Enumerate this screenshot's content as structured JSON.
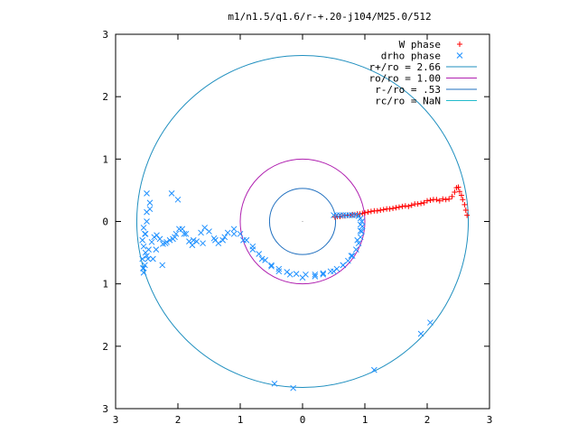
{
  "chart_data": {
    "type": "scatter",
    "title": "m1/n1.5/q1.6/r-+.20-j104/M25.0/512",
    "xlabel": "",
    "ylabel": "",
    "xlim": [
      -3,
      3
    ],
    "ylim": [
      -3,
      3
    ],
    "x_ticks": [
      {
        "value": -3,
        "label": "3"
      },
      {
        "value": -2,
        "label": "2"
      },
      {
        "value": -1,
        "label": "1"
      },
      {
        "value": 0,
        "label": "0"
      },
      {
        "value": 1,
        "label": "1"
      },
      {
        "value": 2,
        "label": "2"
      },
      {
        "value": 3,
        "label": "3"
      }
    ],
    "y_ticks": [
      {
        "value": 3,
        "label": "3"
      },
      {
        "value": 2,
        "label": "2"
      },
      {
        "value": 1,
        "label": "1"
      },
      {
        "value": 0,
        "label": "0"
      },
      {
        "value": -1,
        "label": "1"
      },
      {
        "value": -2,
        "label": "2"
      },
      {
        "value": -3,
        "label": "3"
      }
    ],
    "grid": false,
    "legend_position": "top-right",
    "center_dot": [
      0,
      0
    ],
    "series": [
      {
        "name": "W phase",
        "marker": "+",
        "color": "#ff0000",
        "x": [
          0.52,
          0.56,
          0.6,
          0.64,
          0.68,
          0.72,
          0.76,
          0.8,
          0.84,
          0.88,
          0.92,
          0.96,
          1.0,
          1.05,
          1.1,
          1.15,
          1.2,
          1.25,
          1.3,
          1.35,
          1.4,
          1.45,
          1.5,
          1.55,
          1.6,
          1.65,
          1.7,
          1.75,
          1.8,
          1.85,
          1.9,
          1.95,
          2.0,
          2.05,
          2.1,
          2.15,
          2.2,
          2.25,
          2.3,
          2.35,
          2.4,
          2.44,
          2.47,
          2.5,
          2.52,
          2.55,
          2.57,
          2.6,
          2.62,
          2.64
        ],
        "y": [
          0.07,
          0.08,
          0.08,
          0.09,
          0.09,
          0.1,
          0.1,
          0.11,
          0.11,
          0.12,
          0.12,
          0.13,
          0.14,
          0.15,
          0.16,
          0.17,
          0.17,
          0.18,
          0.19,
          0.2,
          0.2,
          0.21,
          0.22,
          0.23,
          0.24,
          0.25,
          0.24,
          0.26,
          0.28,
          0.28,
          0.29,
          0.3,
          0.33,
          0.34,
          0.35,
          0.35,
          0.33,
          0.36,
          0.35,
          0.36,
          0.4,
          0.47,
          0.54,
          0.55,
          0.48,
          0.42,
          0.35,
          0.27,
          0.18,
          0.1
        ]
      },
      {
        "name": "drho phase",
        "marker": "x",
        "color": "#1e90ff",
        "x": [
          0.5,
          0.55,
          0.6,
          0.65,
          0.7,
          0.75,
          0.8,
          0.85,
          0.9,
          0.93,
          0.95,
          0.96,
          0.95,
          0.93,
          0.9,
          0.86,
          0.8,
          0.73,
          0.65,
          0.55,
          0.45,
          0.33,
          0.2,
          0.05,
          -0.1,
          -0.25,
          -0.38,
          -0.5,
          -0.6,
          -0.7,
          -0.8,
          -0.9,
          -1.0,
          -1.1,
          -1.2,
          -1.28,
          -1.35,
          -1.42,
          -1.5,
          -1.57,
          -1.63,
          -1.7,
          -1.77,
          -1.82,
          -1.87,
          -1.93,
          -1.98,
          -2.03,
          -2.08,
          -2.13,
          -2.18,
          -2.24,
          -2.29,
          -2.34,
          -2.38,
          -2.42,
          -2.47,
          -2.5,
          -2.53,
          -2.55,
          -2.56,
          -2.57,
          -2.55,
          -2.53,
          -2.5,
          -2.45,
          -2.0,
          -2.1,
          -2.25,
          -2.4,
          -2.52,
          -2.57,
          -2.55,
          -2.5,
          -2.45,
          0.93,
          0.88,
          0.78,
          0.65,
          0.5,
          0.33,
          0.2,
          0.0,
          -0.2,
          -0.38,
          -0.5,
          -0.65,
          -0.8,
          -0.95,
          -1.1,
          -1.25,
          -1.4,
          -1.6,
          -1.75,
          -1.9,
          -2.05,
          -2.2,
          -2.35,
          -2.48,
          -2.55,
          -2.52,
          0.93,
          1.15,
          1.9,
          2.05,
          -0.45,
          -0.15,
          -2.5
        ],
        "y": [
          0.1,
          0.1,
          0.1,
          0.1,
          0.1,
          0.1,
          0.1,
          0.1,
          0.09,
          0.05,
          0.0,
          -0.08,
          -0.16,
          -0.25,
          -0.35,
          -0.45,
          -0.55,
          -0.63,
          -0.7,
          -0.76,
          -0.8,
          -0.83,
          -0.85,
          -0.85,
          -0.84,
          -0.81,
          -0.76,
          -0.7,
          -0.62,
          -0.52,
          -0.4,
          -0.3,
          -0.2,
          -0.12,
          -0.18,
          -0.3,
          -0.35,
          -0.27,
          -0.16,
          -0.1,
          -0.18,
          -0.32,
          -0.38,
          -0.32,
          -0.2,
          -0.12,
          -0.12,
          -0.2,
          -0.28,
          -0.3,
          -0.33,
          -0.36,
          -0.28,
          -0.22,
          -0.25,
          -0.33,
          -0.45,
          -0.55,
          -0.7,
          -0.82,
          -0.75,
          -0.6,
          -0.4,
          -0.2,
          0.0,
          0.2,
          0.35,
          0.45,
          -0.7,
          -0.6,
          -0.5,
          -0.3,
          -0.1,
          0.15,
          0.3,
          -0.15,
          -0.3,
          -0.55,
          -0.7,
          -0.8,
          -0.85,
          -0.88,
          -0.9,
          -0.85,
          -0.8,
          -0.72,
          -0.6,
          -0.45,
          -0.3,
          -0.2,
          -0.25,
          -0.3,
          -0.35,
          -0.3,
          -0.2,
          -0.25,
          -0.35,
          -0.45,
          -0.6,
          -0.75,
          -0.2,
          -0.05,
          -2.38,
          -1.8,
          -1.62,
          -2.6,
          -2.67,
          0.45
        ]
      }
    ],
    "circles": [
      {
        "name": "r+/ro = 2.66",
        "radius": 2.66,
        "color": "#1f8fbf"
      },
      {
        "name": "ro/ro = 1.00",
        "radius": 1.0,
        "color": "#b021b0"
      },
      {
        "name": "r-/ro = .53",
        "radius": 0.53,
        "color": "#1f6fbf"
      },
      {
        "name": "rc/ro = NaN",
        "radius": null,
        "color": "#22bbcc"
      }
    ]
  }
}
